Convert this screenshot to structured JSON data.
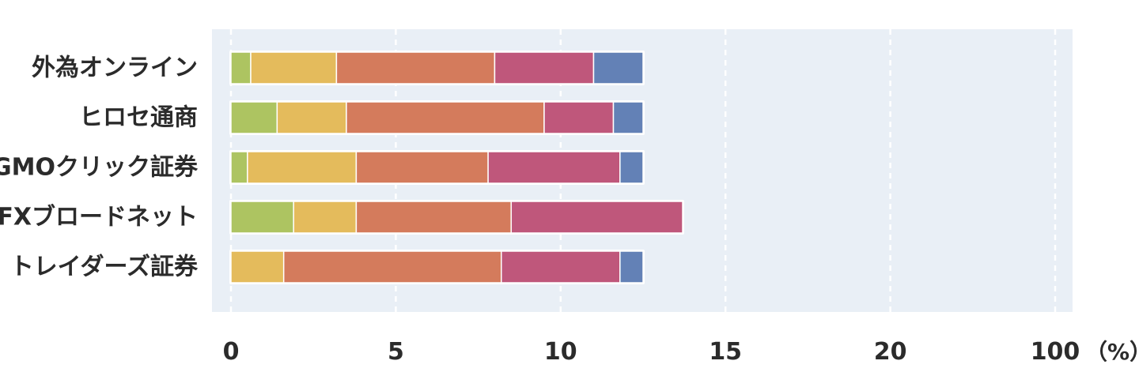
{
  "chart_data": {
    "type": "bar",
    "orientation": "horizontal",
    "stacked": true,
    "categories": [
      "外為オンライン",
      "ヒロセ通商",
      "GMOクリック証券",
      "FXブロードネット",
      "トレイダーズ証券"
    ],
    "x_ticks": [
      "0",
      "5",
      "10",
      "15",
      "20",
      "100"
    ],
    "x_unit": "（%）",
    "xlim": [
      0,
      25
    ],
    "grid": true,
    "series": [
      {
        "color": "#adc461",
        "values": [
          0.6,
          1.4,
          0.5,
          1.9,
          0.0
        ]
      },
      {
        "color": "#e4bb5c",
        "values": [
          2.6,
          2.1,
          3.3,
          1.9,
          1.6
        ]
      },
      {
        "color": "#d47b5c",
        "values": [
          4.8,
          6.0,
          4.0,
          4.7,
          6.6
        ]
      },
      {
        "color": "#bf577b",
        "values": [
          3.0,
          2.1,
          4.0,
          5.2,
          3.6
        ]
      },
      {
        "color": "#6381b6",
        "values": [
          1.5,
          0.9,
          0.7,
          0.0,
          0.7
        ]
      }
    ]
  }
}
